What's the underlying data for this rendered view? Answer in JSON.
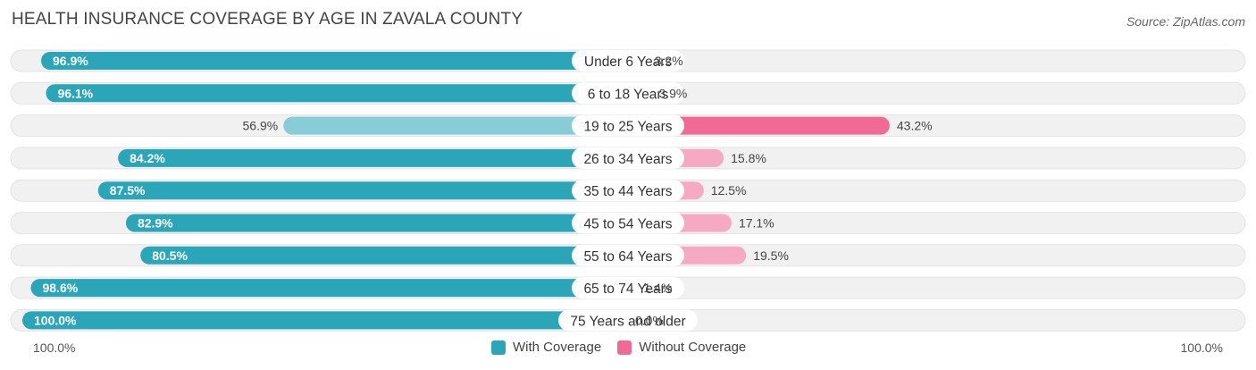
{
  "header": {
    "title": "HEALTH INSURANCE COVERAGE BY AGE IN ZAVALA COUNTY",
    "source": "Source: ZipAtlas.com"
  },
  "axis": {
    "left_label": "100.0%",
    "right_label": "100.0%"
  },
  "legend": {
    "with_label": "With Coverage",
    "without_label": "Without Coverage"
  },
  "colors": {
    "with_dark": "#2ba5b8",
    "with_light": "#86cdd9",
    "without_dark": "#f06a95",
    "without_light": "#f6a9c2",
    "track": "#f1f1f1"
  },
  "chart_data": {
    "type": "bar",
    "orientation": "horizontal-diverging",
    "title": "HEALTH INSURANCE COVERAGE BY AGE IN ZAVALA COUNTY",
    "categories": [
      "Under 6 Years",
      "6 to 18 Years",
      "19 to 25 Years",
      "26 to 34 Years",
      "35 to 44 Years",
      "45 to 54 Years",
      "55 to 64 Years",
      "65 to 74 Years",
      "75 Years and older"
    ],
    "series": [
      {
        "name": "With Coverage",
        "values": [
          96.9,
          96.1,
          56.9,
          84.2,
          87.5,
          82.9,
          80.5,
          98.6,
          100.0
        ],
        "labels": [
          "96.9%",
          "96.1%",
          "56.9%",
          "84.2%",
          "87.5%",
          "82.9%",
          "80.5%",
          "98.6%",
          "100.0%"
        ]
      },
      {
        "name": "Without Coverage",
        "values": [
          3.2,
          3.9,
          43.2,
          15.8,
          12.5,
          17.1,
          19.5,
          1.4,
          0.0
        ],
        "labels": [
          "3.2%",
          "3.9%",
          "43.2%",
          "15.8%",
          "12.5%",
          "17.1%",
          "19.5%",
          "1.4%",
          "0.0%"
        ]
      }
    ],
    "xlim": [
      0,
      100
    ],
    "legend_position": "bottom-center"
  }
}
